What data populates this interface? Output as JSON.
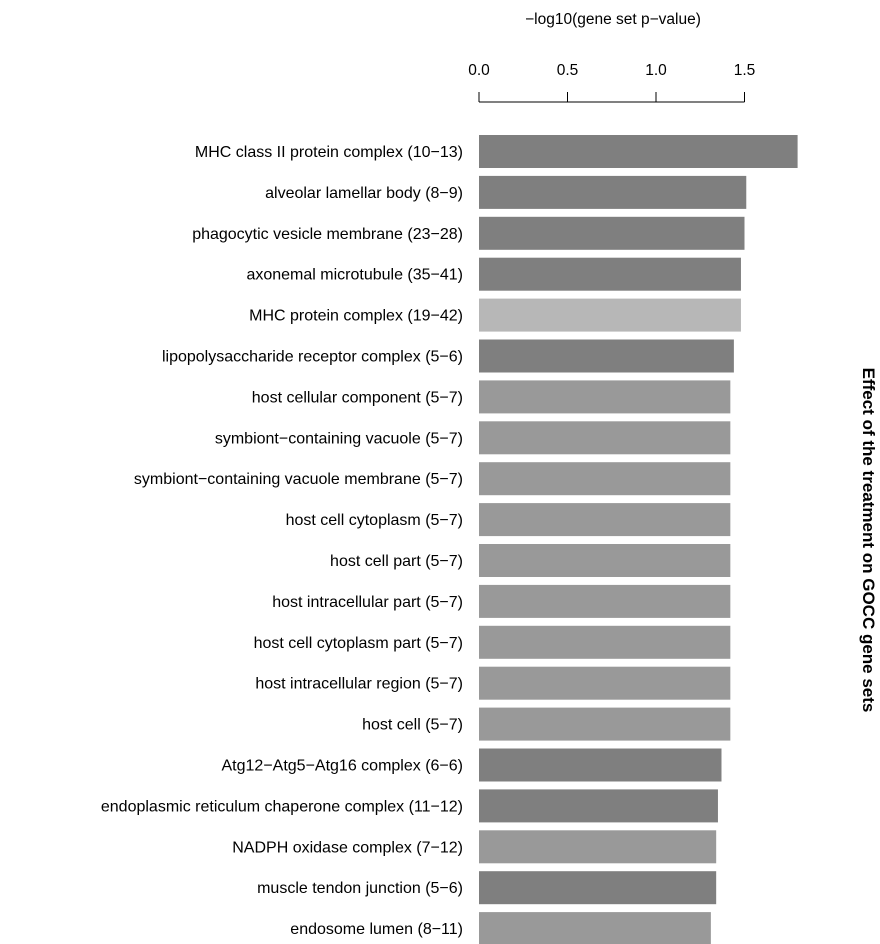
{
  "chart_data": {
    "type": "bar",
    "orientation": "horizontal",
    "title": "Effect of the treatment on GOCC gene sets",
    "xlabel": "−log10(gene set p−value)",
    "ylabel": "",
    "xlim": [
      0,
      1.8
    ],
    "xticks": [
      "0.0",
      "0.5",
      "1.0",
      "1.5"
    ],
    "axis_position": "top",
    "grid": false,
    "categories": [
      "MHC class II protein complex (10−13)",
      "alveolar lamellar body (8−9)",
      "phagocytic vesicle membrane (23−28)",
      "axonemal microtubule (35−41)",
      "MHC protein complex (19−42)",
      "lipopolysaccharide receptor complex (5−6)",
      "host cellular component (5−7)",
      "symbiont−containing vacuole (5−7)",
      "symbiont−containing vacuole membrane (5−7)",
      "host cell cytoplasm (5−7)",
      "host cell part (5−7)",
      "host intracellular part (5−7)",
      "host cell cytoplasm part (5−7)",
      "host intracellular region (5−7)",
      "host cell (5−7)",
      "Atg12−Atg5−Atg16 complex (6−6)",
      "endoplasmic reticulum chaperone complex (11−12)",
      "NADPH oxidase complex (7−12)",
      "muscle tendon junction (5−6)",
      "endosome lumen (8−11)"
    ],
    "values": [
      1.8,
      1.51,
      1.5,
      1.48,
      1.48,
      1.44,
      1.42,
      1.42,
      1.42,
      1.42,
      1.42,
      1.42,
      1.42,
      1.42,
      1.42,
      1.37,
      1.35,
      1.34,
      1.34,
      1.31
    ],
    "bar_colors": [
      "#7f7f7f",
      "#7f7f7f",
      "#7f7f7f",
      "#7f7f7f",
      "#b7b7b7",
      "#7f7f7f",
      "#999999",
      "#999999",
      "#999999",
      "#999999",
      "#999999",
      "#999999",
      "#999999",
      "#999999",
      "#999999",
      "#7f7f7f",
      "#7f7f7f",
      "#999999",
      "#7f7f7f",
      "#999999"
    ]
  }
}
